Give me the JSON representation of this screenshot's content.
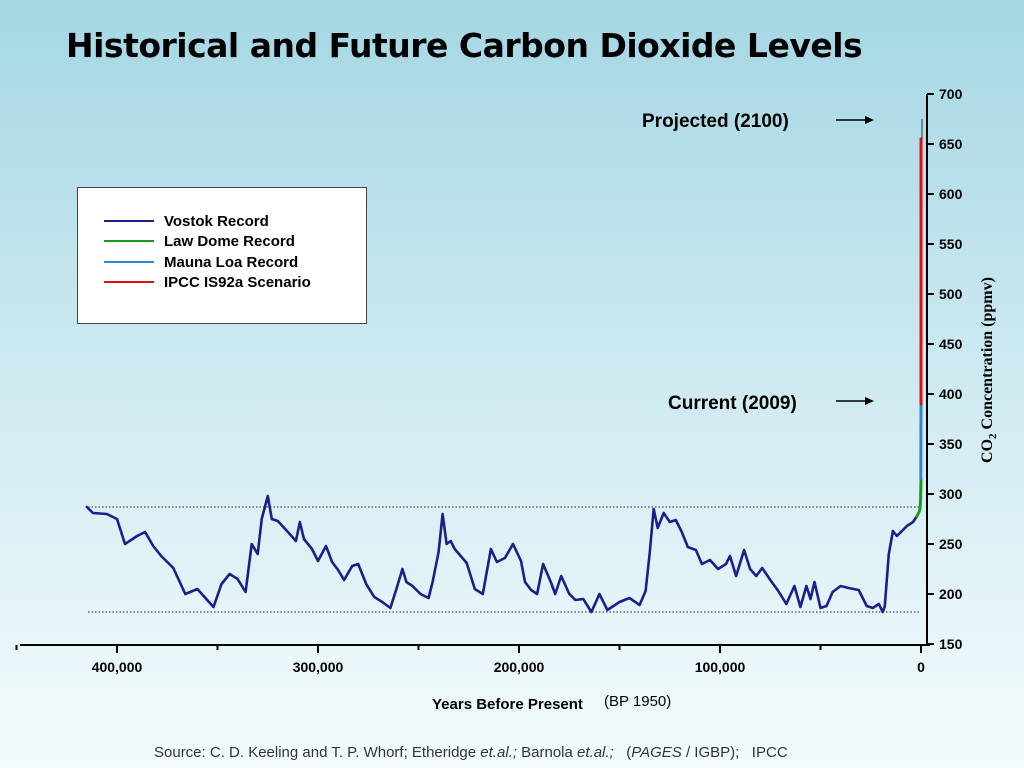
{
  "title": "Historical and Future Carbon Dioxide Levels",
  "legend": [
    {
      "label": "Vostok Record",
      "color": "#1e1e8a"
    },
    {
      "label": "Law Dome Record",
      "color": "#1a9a1a"
    },
    {
      "label": "Mauna Loa Record",
      "color": "#2e86de"
    },
    {
      "label": "IPCC IS92a Scenario",
      "color": "#e01010"
    }
  ],
  "annotations": {
    "projected": "Projected (2100)",
    "current": "Current (2009)"
  },
  "axis": {
    "xlabel": "Years Before Present",
    "xlabel_note": "(BP 1950)",
    "ylabel_main": "CO",
    "ylabel_sub": "2",
    "ylabel_rest": " Concentration (ppmv)"
  },
  "source": {
    "p1": "Source: C. D. Keeling and T. P. Whorf; Etheridge ",
    "i1": "et.al.;",
    "p2": " Barnola ",
    "i2": "et.al.;",
    "p3": "   (",
    "i3": "PAGES",
    "p4": " / IGBP);   IPCC"
  },
  "chart_data": {
    "type": "line",
    "title": "Historical and Future Carbon Dioxide Levels",
    "xlabel": "Years Before Present",
    "ylabel": "CO2 Concentration (ppmv)",
    "xlim": [
      450000,
      0
    ],
    "ylim": [
      150,
      700
    ],
    "x_ticks": [
      400000,
      300000,
      200000,
      100000,
      0
    ],
    "x_tick_labels": [
      "400,000",
      "300,000",
      "200,000",
      "100,000",
      "0"
    ],
    "y_ticks": [
      150,
      200,
      250,
      300,
      350,
      400,
      450,
      500,
      550,
      600,
      650,
      700
    ],
    "reference_lines": [
      287,
      182
    ],
    "legend_position": "top-left",
    "series": [
      {
        "name": "Vostok Record",
        "color": "#1e1e8a",
        "x": [
          415000,
          412000,
          405000,
          400000,
          396000,
          390000,
          386000,
          382000,
          378000,
          372000,
          366000,
          360000,
          356000,
          352000,
          348000,
          344000,
          340000,
          336000,
          333000,
          330000,
          328000,
          325000,
          323000,
          320000,
          315000,
          311000,
          309000,
          307000,
          303000,
          300000,
          296000,
          293000,
          290000,
          287000,
          283000,
          280000,
          276000,
          272000,
          268000,
          264000,
          261000,
          258000,
          256000,
          253000,
          249000,
          245000,
          243000,
          240000,
          238000,
          236000,
          234000,
          232000,
          229000,
          226000,
          222000,
          218000,
          214000,
          211000,
          207000,
          203000,
          199000,
          197000,
          194000,
          191000,
          188000,
          184000,
          182000,
          179000,
          175000,
          172000,
          168000,
          164000,
          160000,
          156000,
          150000,
          145000,
          140000,
          137000,
          135000,
          133000,
          131000,
          128000,
          125000,
          122000,
          119000,
          116000,
          112000,
          109000,
          105000,
          101000,
          97000,
          95000,
          92000,
          88000,
          85000,
          82000,
          79000,
          75000,
          71000,
          67000,
          63000,
          60000,
          57000,
          55000,
          53000,
          50000,
          47000,
          44000,
          40000,
          36000,
          31000,
          27000,
          24000,
          21000,
          19000,
          18000,
          16000,
          14000,
          12000,
          10000,
          7000,
          4000,
          2000
        ],
        "values": [
          287,
          281,
          280,
          275,
          250,
          258,
          262,
          248,
          238,
          226,
          200,
          205,
          196,
          187,
          210,
          220,
          215,
          202,
          250,
          240,
          275,
          298,
          275,
          273,
          262,
          253,
          272,
          255,
          245,
          233,
          248,
          232,
          224,
          214,
          228,
          230,
          210,
          197,
          192,
          186,
          205,
          225,
          212,
          208,
          200,
          196,
          212,
          242,
          280,
          250,
          253,
          245,
          238,
          231,
          205,
          200,
          245,
          232,
          236,
          250,
          233,
          212,
          204,
          200,
          230,
          211,
          200,
          218,
          200,
          194,
          195,
          182,
          200,
          184,
          192,
          196,
          189,
          203,
          240,
          285,
          266,
          281,
          272,
          274,
          262,
          247,
          244,
          230,
          234,
          225,
          230,
          238,
          218,
          244,
          225,
          218,
          226,
          214,
          203,
          190,
          208,
          187,
          208,
          195,
          212,
          186,
          188,
          202,
          208,
          206,
          204,
          188,
          186,
          190,
          182,
          188,
          240,
          263,
          258,
          262,
          268,
          272,
          278
        ]
      },
      {
        "name": "Law Dome Record",
        "color": "#1a9a1a",
        "x": [
          2000,
          1500,
          1000,
          500,
          200,
          100,
          0
        ],
        "values": [
          278,
          280,
          282,
          285,
          295,
          305,
          315
        ]
      },
      {
        "name": "Mauna Loa Record",
        "color": "#2e86de",
        "x": [
          100,
          0
        ],
        "values": [
          315,
          390
        ]
      },
      {
        "name": "IPCC IS92a Scenario",
        "color": "#e01010",
        "x": [
          0,
          0
        ],
        "values": [
          390,
          655
        ]
      }
    ]
  }
}
